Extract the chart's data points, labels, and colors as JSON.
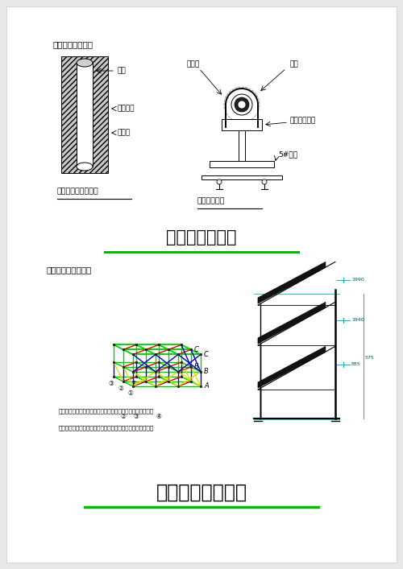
{
  "bg_color": "#e8e8e8",
  "page_bg": "#ffffff",
  "title1": "管道保温做法详图",
  "title2": "管道安装大样图",
  "title3": "太阳能支管管示意图",
  "title4": "集热器支架大样图",
  "label_shuiguan": "水管",
  "label_lvpi": "铝皮保护",
  "label_baowen": "保温管",
  "label_caption1": "管道保温结构示意图",
  "label_baowenceng": "保温层",
  "label_guanjia": "管箍",
  "label_mutuo": "木托（木垫）",
  "label_jiaotie": "5#角铁",
  "label_caption2": "水平管路支架",
  "label_steel1": "钢结构立面图，上一系用角钢，型号根据风雪荷载荷计算得出",
  "label_steel2": "钢结构立面图，统一系用角钢，型号根据风雪荷载荷计算得出",
  "green_line": "#00bb00",
  "truss_green": "#00cc00",
  "truss_red": "#dd0000",
  "truss_yellow": "#dddd00",
  "truss_blue": "#0000cc",
  "bracket_cyan": "#00bbbb"
}
